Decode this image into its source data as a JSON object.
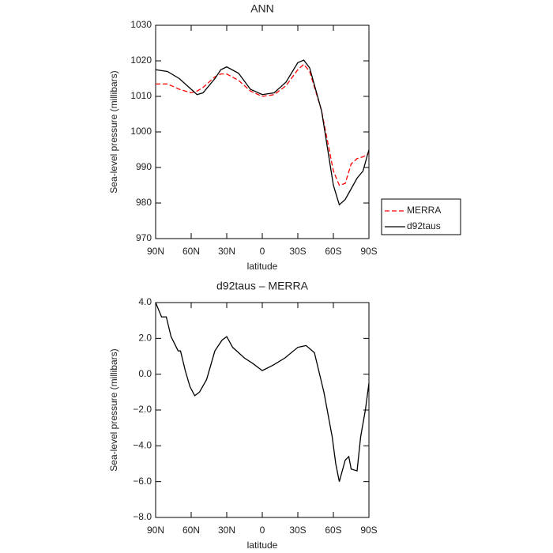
{
  "chart_data": [
    {
      "type": "line",
      "title": "ANN",
      "x_label": "latitude",
      "y_label": "Sea-level pressure (millibars)",
      "x": [
        90,
        80,
        70,
        60,
        55,
        50,
        40,
        35,
        30,
        20,
        10,
        0,
        -10,
        -20,
        -30,
        -35,
        -40,
        -50,
        -60,
        -65,
        -70,
        -75,
        -80,
        -85,
        -90
      ],
      "series": [
        {
          "name": "MERRA",
          "color": "#ff0000",
          "dashed": true,
          "values": [
            1013.5,
            1013.5,
            1012,
            1011,
            1011.5,
            1012.5,
            1015.5,
            1016.3,
            1016.3,
            1014.5,
            1011.5,
            1010,
            1010.5,
            1013,
            1017.5,
            1019,
            1017,
            1006,
            989,
            985,
            985.5,
            991,
            992.5,
            993,
            994
          ]
        },
        {
          "name": "d92taus",
          "color": "#000000",
          "dashed": false,
          "values": [
            1017.5,
            1017,
            1015,
            1012,
            1010.5,
            1011,
            1015,
            1017.5,
            1018.3,
            1016.5,
            1012,
            1010.5,
            1011,
            1014,
            1019.5,
            1020.2,
            1018,
            1006,
            985,
            979.5,
            981,
            984,
            987,
            989,
            995
          ]
        }
      ],
      "xlim": [
        90,
        -90
      ],
      "xticks": [
        {
          "value": 90,
          "label": "90N"
        },
        {
          "value": 60,
          "label": "60N"
        },
        {
          "value": 30,
          "label": "30N"
        },
        0,
        {
          "value": -30,
          "label": "30S"
        },
        {
          "value": -60,
          "label": "60S"
        },
        {
          "value": -90,
          "label": "90S"
        }
      ],
      "ylim": [
        970,
        1030
      ],
      "yticks": [
        970,
        980,
        990,
        1000,
        1010,
        1020,
        1030
      ],
      "legend": "outside-right"
    },
    {
      "type": "line",
      "title": "d92taus – MERRA",
      "x_label": "latitude",
      "y_label": "Sea-level pressure (millibars)",
      "x": [
        90,
        85,
        81,
        77,
        71,
        69,
        65,
        61,
        57,
        53,
        47,
        40,
        34,
        30,
        25,
        15,
        8,
        0,
        -9,
        -19,
        -30,
        -37,
        -44,
        -52,
        -59,
        -62,
        -65,
        -70,
        -73,
        -75,
        -80,
        -83,
        -87,
        -90
      ],
      "values": [
        4.0,
        3.2,
        3.2,
        2.1,
        1.3,
        1.3,
        0.2,
        -0.7,
        -1.2,
        -1.0,
        -0.3,
        1.3,
        1.9,
        2.1,
        1.5,
        0.9,
        0.6,
        0.2,
        0.5,
        0.9,
        1.5,
        1.6,
        1.2,
        -1.0,
        -3.5,
        -5.0,
        -6.0,
        -4.8,
        -4.6,
        -5.3,
        -5.4,
        -3.5,
        -2.0,
        -0.5
      ],
      "color": "#000000",
      "xlim": [
        90,
        -90
      ],
      "xticks": [
        {
          "value": 90,
          "label": "90N"
        },
        {
          "value": 60,
          "label": "60N"
        },
        {
          "value": 30,
          "label": "30N"
        },
        0,
        {
          "value": -30,
          "label": "30S"
        },
        {
          "value": -60,
          "label": "60S"
        },
        {
          "value": -90,
          "label": "90S"
        }
      ],
      "ylim": [
        -8,
        4
      ],
      "yticks": [
        {
          "value": -8,
          "label": "−8.0"
        },
        {
          "value": -6,
          "label": "−6.0"
        },
        {
          "value": -4,
          "label": "−4.0"
        },
        {
          "value": -2,
          "label": "−2.0"
        },
        {
          "value": 0,
          "label": "0.0"
        },
        {
          "value": 2,
          "label": "2.0"
        },
        {
          "value": 4,
          "label": "4.0"
        }
      ]
    }
  ]
}
